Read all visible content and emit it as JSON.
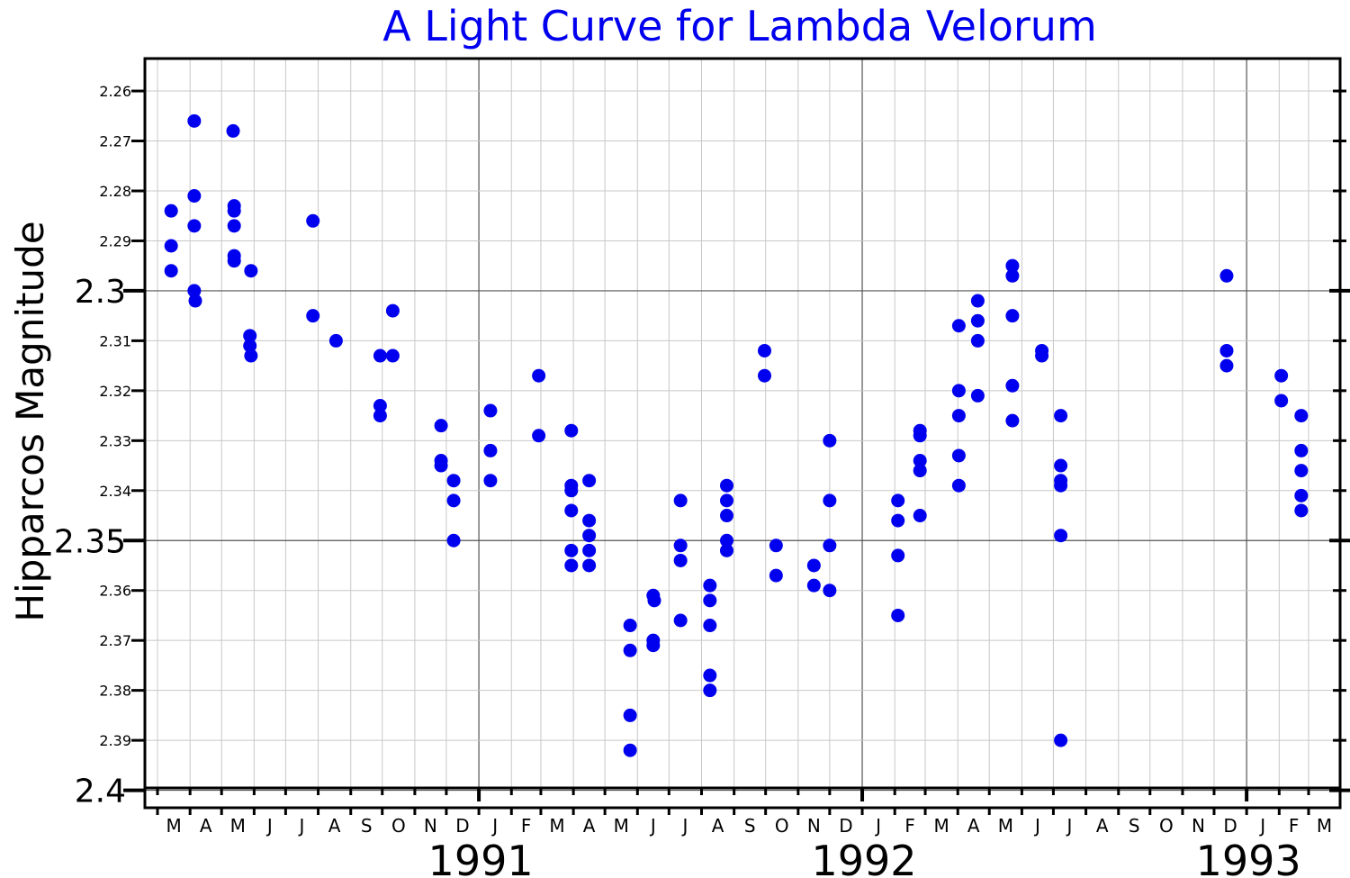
{
  "chart_data": {
    "type": "scatter",
    "title": "A Light Curve for Lambda Velorum",
    "xlabel": "",
    "ylabel": "Hipparcos Magnitude",
    "title_color": "#0000ee",
    "point_color": "#0000ee",
    "ylim": [
      2.2535,
      2.4035
    ],
    "y_inverted": true,
    "grid": true,
    "xlim": [
      "1990-02-17",
      "1993-03-31"
    ],
    "x_month_labels": [
      "M",
      "A",
      "M",
      "J",
      "J",
      "A",
      "S",
      "O",
      "N",
      "D",
      "J",
      "F",
      "M",
      "A",
      "M",
      "J",
      "J",
      "A",
      "S",
      "O",
      "N",
      "D",
      "J",
      "F",
      "M",
      "A",
      "M",
      "J",
      "J",
      "A",
      "S",
      "O",
      "N",
      "D",
      "J",
      "F",
      "M"
    ],
    "year_labels": [
      "1991",
      "1992",
      "1993"
    ],
    "y_major_ticks": [
      "2.3",
      "2.35",
      "2.4"
    ],
    "y_minor_ticks": [
      "2.26",
      "2.27",
      "2.28",
      "2.29",
      "2.31",
      "2.32",
      "2.33",
      "2.34",
      "2.36",
      "2.37",
      "2.38",
      "2.39"
    ],
    "points": [
      {
        "x": "1990-03-14",
        "y": 2.284
      },
      {
        "x": "1990-03-14",
        "y": 2.291
      },
      {
        "x": "1990-03-14",
        "y": 2.296
      },
      {
        "x": "1990-04-05",
        "y": 2.266
      },
      {
        "x": "1990-04-05",
        "y": 2.281
      },
      {
        "x": "1990-04-05",
        "y": 2.287
      },
      {
        "x": "1990-04-05",
        "y": 2.3
      },
      {
        "x": "1990-04-06",
        "y": 2.302
      },
      {
        "x": "1990-05-12",
        "y": 2.268
      },
      {
        "x": "1990-05-13",
        "y": 2.283
      },
      {
        "x": "1990-05-13",
        "y": 2.284
      },
      {
        "x": "1990-05-13",
        "y": 2.287
      },
      {
        "x": "1990-05-13",
        "y": 2.293
      },
      {
        "x": "1990-05-13",
        "y": 2.294
      },
      {
        "x": "1990-05-29",
        "y": 2.296
      },
      {
        "x": "1990-05-28",
        "y": 2.309
      },
      {
        "x": "1990-05-28",
        "y": 2.311
      },
      {
        "x": "1990-05-29",
        "y": 2.313
      },
      {
        "x": "1990-07-27",
        "y": 2.286
      },
      {
        "x": "1990-07-27",
        "y": 2.305
      },
      {
        "x": "1990-08-18",
        "y": 2.31
      },
      {
        "x": "1990-09-29",
        "y": 2.313
      },
      {
        "x": "1990-09-29",
        "y": 2.323
      },
      {
        "x": "1990-09-29",
        "y": 2.325
      },
      {
        "x": "1990-10-11",
        "y": 2.304
      },
      {
        "x": "1990-10-11",
        "y": 2.313
      },
      {
        "x": "1990-11-26",
        "y": 2.327
      },
      {
        "x": "1990-11-26",
        "y": 2.334
      },
      {
        "x": "1990-11-26",
        "y": 2.335
      },
      {
        "x": "1990-12-08",
        "y": 2.338
      },
      {
        "x": "1990-12-08",
        "y": 2.342
      },
      {
        "x": "1990-12-08",
        "y": 2.35
      },
      {
        "x": "1991-01-12",
        "y": 2.324
      },
      {
        "x": "1991-01-12",
        "y": 2.332
      },
      {
        "x": "1991-01-12",
        "y": 2.338
      },
      {
        "x": "1991-02-27",
        "y": 2.317
      },
      {
        "x": "1991-02-27",
        "y": 2.329
      },
      {
        "x": "1991-03-30",
        "y": 2.328
      },
      {
        "x": "1991-03-30",
        "y": 2.339
      },
      {
        "x": "1991-03-30",
        "y": 2.34
      },
      {
        "x": "1991-03-30",
        "y": 2.344
      },
      {
        "x": "1991-03-30",
        "y": 2.352
      },
      {
        "x": "1991-03-30",
        "y": 2.355
      },
      {
        "x": "1991-04-16",
        "y": 2.338
      },
      {
        "x": "1991-04-16",
        "y": 2.346
      },
      {
        "x": "1991-04-16",
        "y": 2.349
      },
      {
        "x": "1991-04-16",
        "y": 2.352
      },
      {
        "x": "1991-04-16",
        "y": 2.355
      },
      {
        "x": "1991-05-25",
        "y": 2.367
      },
      {
        "x": "1991-05-25",
        "y": 2.372
      },
      {
        "x": "1991-05-25",
        "y": 2.385
      },
      {
        "x": "1991-05-25",
        "y": 2.392
      },
      {
        "x": "1991-06-16",
        "y": 2.361
      },
      {
        "x": "1991-06-17",
        "y": 2.362
      },
      {
        "x": "1991-06-16",
        "y": 2.37
      },
      {
        "x": "1991-06-16",
        "y": 2.371
      },
      {
        "x": "1991-07-12",
        "y": 2.342
      },
      {
        "x": "1991-07-12",
        "y": 2.351
      },
      {
        "x": "1991-07-12",
        "y": 2.354
      },
      {
        "x": "1991-07-12",
        "y": 2.366
      },
      {
        "x": "1991-08-09",
        "y": 2.359
      },
      {
        "x": "1991-08-09",
        "y": 2.362
      },
      {
        "x": "1991-08-09",
        "y": 2.367
      },
      {
        "x": "1991-08-09",
        "y": 2.377
      },
      {
        "x": "1991-08-09",
        "y": 2.38
      },
      {
        "x": "1991-08-25",
        "y": 2.339
      },
      {
        "x": "1991-08-25",
        "y": 2.342
      },
      {
        "x": "1991-08-25",
        "y": 2.345
      },
      {
        "x": "1991-08-25",
        "y": 2.35
      },
      {
        "x": "1991-08-25",
        "y": 2.352
      },
      {
        "x": "1991-09-30",
        "y": 2.312
      },
      {
        "x": "1991-09-30",
        "y": 2.317
      },
      {
        "x": "1991-10-11",
        "y": 2.351
      },
      {
        "x": "1991-10-11",
        "y": 2.357
      },
      {
        "x": "1991-11-16",
        "y": 2.355
      },
      {
        "x": "1991-11-16",
        "y": 2.359
      },
      {
        "x": "1991-12-01",
        "y": 2.33
      },
      {
        "x": "1991-12-01",
        "y": 2.342
      },
      {
        "x": "1991-12-01",
        "y": 2.351
      },
      {
        "x": "1991-12-01",
        "y": 2.36
      },
      {
        "x": "1992-02-04",
        "y": 2.342
      },
      {
        "x": "1992-02-04",
        "y": 2.346
      },
      {
        "x": "1992-02-04",
        "y": 2.353
      },
      {
        "x": "1992-02-04",
        "y": 2.365
      },
      {
        "x": "1992-02-25",
        "y": 2.328
      },
      {
        "x": "1992-02-25",
        "y": 2.329
      },
      {
        "x": "1992-02-25",
        "y": 2.334
      },
      {
        "x": "1992-02-25",
        "y": 2.336
      },
      {
        "x": "1992-02-25",
        "y": 2.345
      },
      {
        "x": "1992-04-02",
        "y": 2.307
      },
      {
        "x": "1992-04-02",
        "y": 2.32
      },
      {
        "x": "1992-04-02",
        "y": 2.325
      },
      {
        "x": "1992-04-02",
        "y": 2.333
      },
      {
        "x": "1992-04-02",
        "y": 2.339
      },
      {
        "x": "1992-04-20",
        "y": 2.302
      },
      {
        "x": "1992-04-20",
        "y": 2.306
      },
      {
        "x": "1992-04-20",
        "y": 2.31
      },
      {
        "x": "1992-04-20",
        "y": 2.321
      },
      {
        "x": "1992-05-23",
        "y": 2.295
      },
      {
        "x": "1992-05-23",
        "y": 2.297
      },
      {
        "x": "1992-05-23",
        "y": 2.305
      },
      {
        "x": "1992-05-23",
        "y": 2.319
      },
      {
        "x": "1992-05-23",
        "y": 2.326
      },
      {
        "x": "1992-06-20",
        "y": 2.312
      },
      {
        "x": "1992-06-20",
        "y": 2.313
      },
      {
        "x": "1992-07-08",
        "y": 2.325
      },
      {
        "x": "1992-07-08",
        "y": 2.335
      },
      {
        "x": "1992-07-08",
        "y": 2.338
      },
      {
        "x": "1992-07-08",
        "y": 2.339
      },
      {
        "x": "1992-07-08",
        "y": 2.349
      },
      {
        "x": "1992-07-08",
        "y": 2.39
      },
      {
        "x": "1992-12-13",
        "y": 2.297
      },
      {
        "x": "1992-12-13",
        "y": 2.312
      },
      {
        "x": "1992-12-13",
        "y": 2.315
      },
      {
        "x": "1993-02-03",
        "y": 2.317
      },
      {
        "x": "1993-02-03",
        "y": 2.322
      },
      {
        "x": "1993-02-22",
        "y": 2.325
      },
      {
        "x": "1993-02-22",
        "y": 2.332
      },
      {
        "x": "1993-02-22",
        "y": 2.336
      },
      {
        "x": "1993-02-22",
        "y": 2.341
      },
      {
        "x": "1993-02-22",
        "y": 2.344
      }
    ]
  }
}
